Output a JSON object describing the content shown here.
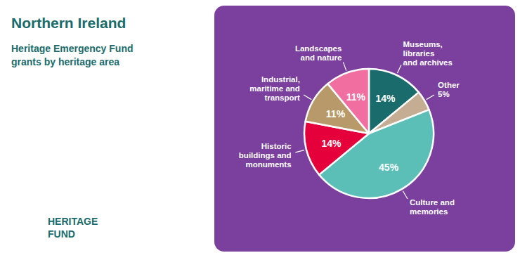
{
  "chart_data": {
    "type": "pie",
    "title": "Northern Ireland",
    "subtitle": "Heritage Emergency Fund\ngrants by heritage area",
    "categories": [
      "Museums,\nlibraries\nand archives",
      "Other\n5%",
      "Culture and\nmemories",
      "Historic\nbuildings and\nmonuments",
      "Industrial,\nmaritime and\ntransport",
      "Landscapes\nand nature"
    ],
    "values": [
      14,
      5,
      45,
      14,
      11,
      11
    ],
    "value_labels": [
      "14%",
      null,
      "45%",
      "14%",
      "11%",
      "11%"
    ],
    "colors": [
      "#1A6B6B",
      "#C4AD93",
      "#5BBFB8",
      "#E5003B",
      "#B89A6A",
      "#F06EA0"
    ],
    "data_labels": true,
    "annotations": [
      "HERITAGE",
      "FUND"
    ]
  }
}
